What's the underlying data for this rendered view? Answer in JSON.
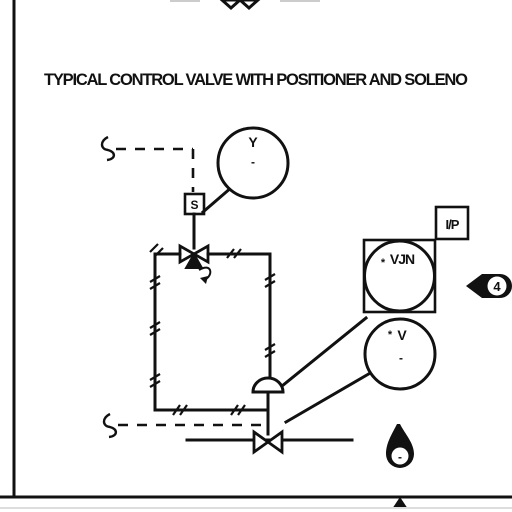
{
  "diagram": {
    "title": "TYPICAL CONTROL VALVE WITH POSITIONER AND SOLENO",
    "instruments": {
      "solenoid_tag": "Y",
      "solenoid_sub": "-",
      "solenoid_box": "S",
      "positioner_tag": "VJN",
      "positioner_prefix": "*",
      "positioner_box": "I/P",
      "valve_tag": "V",
      "valve_prefix": "*",
      "valve_sub": "-"
    },
    "markers": {
      "offpage_right": "4",
      "offpage_bottom": "-"
    }
  }
}
